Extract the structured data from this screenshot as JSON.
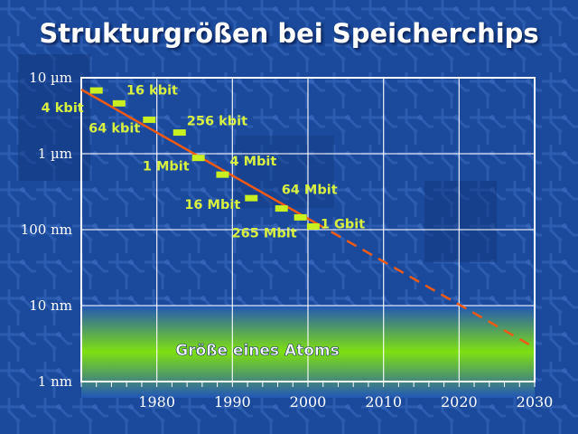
{
  "chart_data": {
    "type": "scatter",
    "title": "Strukturgrößen bei Speicherchips",
    "xlim": [
      1970,
      2030
    ],
    "ylim_nm": [
      1,
      10000
    ],
    "y_scale": "log",
    "grid": true,
    "x_ticks": [
      "1980",
      "1990",
      "2000",
      "2010",
      "2020",
      "2030"
    ],
    "y_ticks": [
      {
        "label": "10 µm",
        "value_nm": 10000
      },
      {
        "label": "1 µm",
        "value_nm": 1000
      },
      {
        "label": "100 nm",
        "value_nm": 100
      },
      {
        "label": "10 nm",
        "value_nm": 10
      },
      {
        "label": "1 nm",
        "value_nm": 1
      }
    ],
    "series": [
      {
        "points": [
          {
            "label": "4 kbit",
            "x": 1972,
            "y_nm": 6800
          },
          {
            "label": "16 kbit",
            "x": 1975,
            "y_nm": 4600
          },
          {
            "label": "64 kbit",
            "x": 1979,
            "y_nm": 2800
          },
          {
            "label": "256 kbit",
            "x": 1983,
            "y_nm": 1900
          },
          {
            "label": "1 Mbit",
            "x": 1985.5,
            "y_nm": 880
          },
          {
            "label": "4 Mbit",
            "x": 1988.7,
            "y_nm": 530
          },
          {
            "label": "16 Mbit",
            "x": 1992.5,
            "y_nm": 260
          },
          {
            "label": "64 Mbit",
            "x": 1996.5,
            "y_nm": 190
          },
          {
            "label": "265 Mbit",
            "x": 1999,
            "y_nm": 145
          },
          {
            "label": "1 Gbit",
            "x": 2000.7,
            "y_nm": 110
          }
        ]
      }
    ],
    "trend_line": {
      "color": "#f05a14",
      "from": {
        "x": 1970,
        "y_nm": 7000
      },
      "to": {
        "x": 2030,
        "y_nm": 2.8
      },
      "dashed_after_x": 2001
    },
    "annotations": [
      {
        "text": "Größe eines Atoms",
        "band_nm": [
          0.8,
          10
        ]
      }
    ]
  },
  "colors": {
    "background": "#1b4a9c",
    "marker": "#c9f020",
    "label": "#d8f040",
    "trend": "#f05a14",
    "grid": "#ffffff",
    "band_center": "#7fe010"
  }
}
